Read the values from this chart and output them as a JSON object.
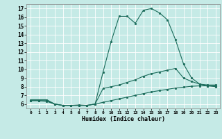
{
  "xlabel": "Humidex (Indice chaleur)",
  "bg_color": "#c5eae6",
  "line_color": "#1a6b5a",
  "xlim": [
    0,
    23
  ],
  "ylim": [
    5.5,
    17.5
  ],
  "xticks": [
    0,
    1,
    2,
    3,
    4,
    5,
    6,
    7,
    8,
    9,
    10,
    11,
    12,
    13,
    14,
    15,
    16,
    17,
    18,
    19,
    20,
    21,
    22,
    23
  ],
  "yticks": [
    6,
    7,
    8,
    9,
    10,
    11,
    12,
    13,
    14,
    15,
    16,
    17
  ],
  "curve1_x": [
    0,
    1,
    2,
    3,
    4,
    5,
    6,
    7,
    8,
    9,
    10,
    11,
    12,
    13,
    14,
    15,
    16,
    17,
    18,
    19,
    20,
    21,
    22,
    23
  ],
  "curve1_y": [
    6.5,
    6.5,
    6.5,
    6.0,
    5.85,
    5.85,
    5.9,
    5.85,
    6.0,
    9.7,
    13.2,
    16.1,
    16.1,
    15.3,
    16.8,
    17.0,
    16.5,
    15.7,
    13.4,
    10.6,
    9.0,
    8.3,
    8.2,
    8.2
  ],
  "curve2_x": [
    0,
    1,
    2,
    3,
    4,
    5,
    6,
    7,
    8,
    9,
    10,
    11,
    12,
    13,
    14,
    15,
    16,
    17,
    18,
    19,
    20,
    21,
    22,
    23
  ],
  "curve2_y": [
    6.4,
    6.4,
    6.4,
    6.0,
    5.85,
    5.85,
    5.85,
    5.85,
    6.0,
    7.8,
    8.0,
    8.2,
    8.5,
    8.8,
    9.2,
    9.5,
    9.7,
    9.9,
    10.1,
    9.0,
    8.6,
    8.3,
    8.1,
    8.0
  ],
  "curve3_x": [
    0,
    1,
    2,
    3,
    4,
    5,
    6,
    7,
    8,
    9,
    10,
    11,
    12,
    13,
    14,
    15,
    16,
    17,
    18,
    19,
    20,
    21,
    22,
    23
  ],
  "curve3_y": [
    6.4,
    6.4,
    6.3,
    6.0,
    5.85,
    5.85,
    5.85,
    5.85,
    6.0,
    6.2,
    6.4,
    6.6,
    6.8,
    7.0,
    7.2,
    7.4,
    7.55,
    7.7,
    7.85,
    7.95,
    8.05,
    8.1,
    8.1,
    8.1
  ]
}
